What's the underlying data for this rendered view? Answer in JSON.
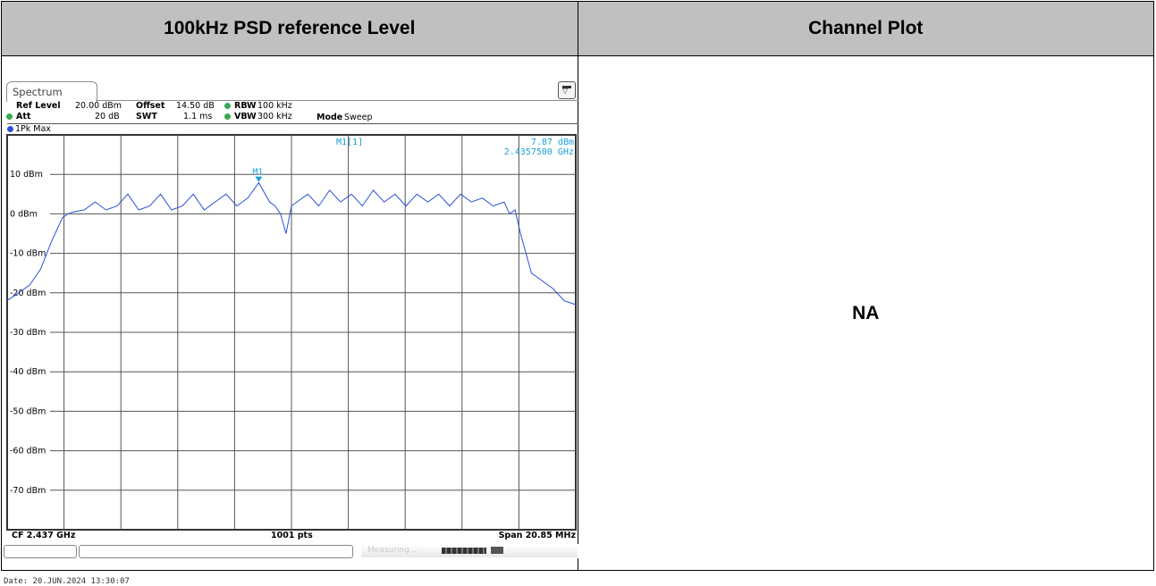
{
  "header": {
    "left_title": "100kHz PSD reference Level",
    "right_title": "Channel Plot"
  },
  "right_cell": {
    "text": "NA"
  },
  "analyzer": {
    "tab_label": "Spectrum",
    "ref_level_label": "Ref Level",
    "ref_level_value": "20.00 dBm",
    "offset_label": "Offset",
    "offset_value": "14.50 dB",
    "rbw_label": "RBW",
    "rbw_value": "100 kHz",
    "att_label": "Att",
    "att_value": "20 dB",
    "swt_label": "SWT",
    "swt_value": "1.1 ms",
    "vbw_label": "VBW",
    "vbw_value": "300 kHz",
    "mode_label": "Mode",
    "mode_value": "Sweep",
    "trace_label": "1Pk Max",
    "marker_name": "M1",
    "marker_readout_label": "M1[1]",
    "marker_level": "7.87 dBm",
    "marker_freq": "2.4357500 GHz",
    "cf_label": "CF 2.437 GHz",
    "pts_label": "1001 pts",
    "span_label": "Span 20.85 MHz",
    "status_text": "Measuring...",
    "date_text": "Date: 20.JUN.2024  13:30:07",
    "colors": {
      "trace": "#2b4fd8",
      "marker": "#1aa0d8",
      "grid": "#555555"
    }
  },
  "chart_data": {
    "type": "line",
    "title": "",
    "xlabel": "",
    "ylabel": "",
    "ylim": [
      -80,
      20
    ],
    "y_ticks": [
      "10 dBm",
      "0 dBm",
      "-10 dBm",
      "-20 dBm",
      "-30 dBm",
      "-40 dBm",
      "-50 dBm",
      "-60 dBm",
      "-70 dBm"
    ],
    "y_tick_values": [
      10,
      0,
      -10,
      -20,
      -30,
      -40,
      -50,
      -60,
      -70
    ],
    "x_center_ghz": 2.437,
    "x_span_mhz": 20.85,
    "grid": true,
    "series": [
      {
        "x_mhz": [
          -10.43,
          -10.0,
          -9.6,
          -9.2,
          -8.8,
          -8.4,
          -8.2,
          -8.0,
          -7.6,
          -7.2,
          -6.8,
          -6.4,
          -6.0,
          -5.6,
          -5.2,
          -4.8,
          -4.4,
          -4.0,
          -3.6,
          -3.2,
          -2.8,
          -2.4,
          -2.0,
          -1.6,
          -1.2,
          -0.8,
          -0.6,
          -0.4,
          -0.2,
          0.0,
          0.2,
          0.6,
          1.0,
          1.4,
          1.8,
          2.2,
          2.6,
          3.0,
          3.4,
          3.8,
          4.2,
          4.6,
          5.0,
          5.4,
          5.8,
          6.2,
          6.6,
          7.0,
          7.4,
          7.8,
          8.0,
          8.2,
          8.4,
          8.6,
          8.8,
          9.2,
          9.6,
          10.0,
          10.43
        ],
        "y_dbm": [
          -22,
          -20,
          -18,
          -14,
          -7,
          -1,
          0,
          0.5,
          1,
          3,
          1,
          2,
          5,
          1,
          2,
          5,
          1,
          2,
          5,
          1,
          3,
          5,
          2,
          4,
          7.87,
          3,
          2,
          0,
          -5,
          2,
          3,
          5,
          2,
          6,
          3,
          5,
          2,
          6,
          3,
          5,
          2,
          5,
          3,
          5,
          2,
          5,
          3,
          4,
          2,
          3,
          0,
          1,
          -5,
          -10,
          -15,
          -17,
          -19,
          -22,
          -23
        ]
      }
    ]
  }
}
